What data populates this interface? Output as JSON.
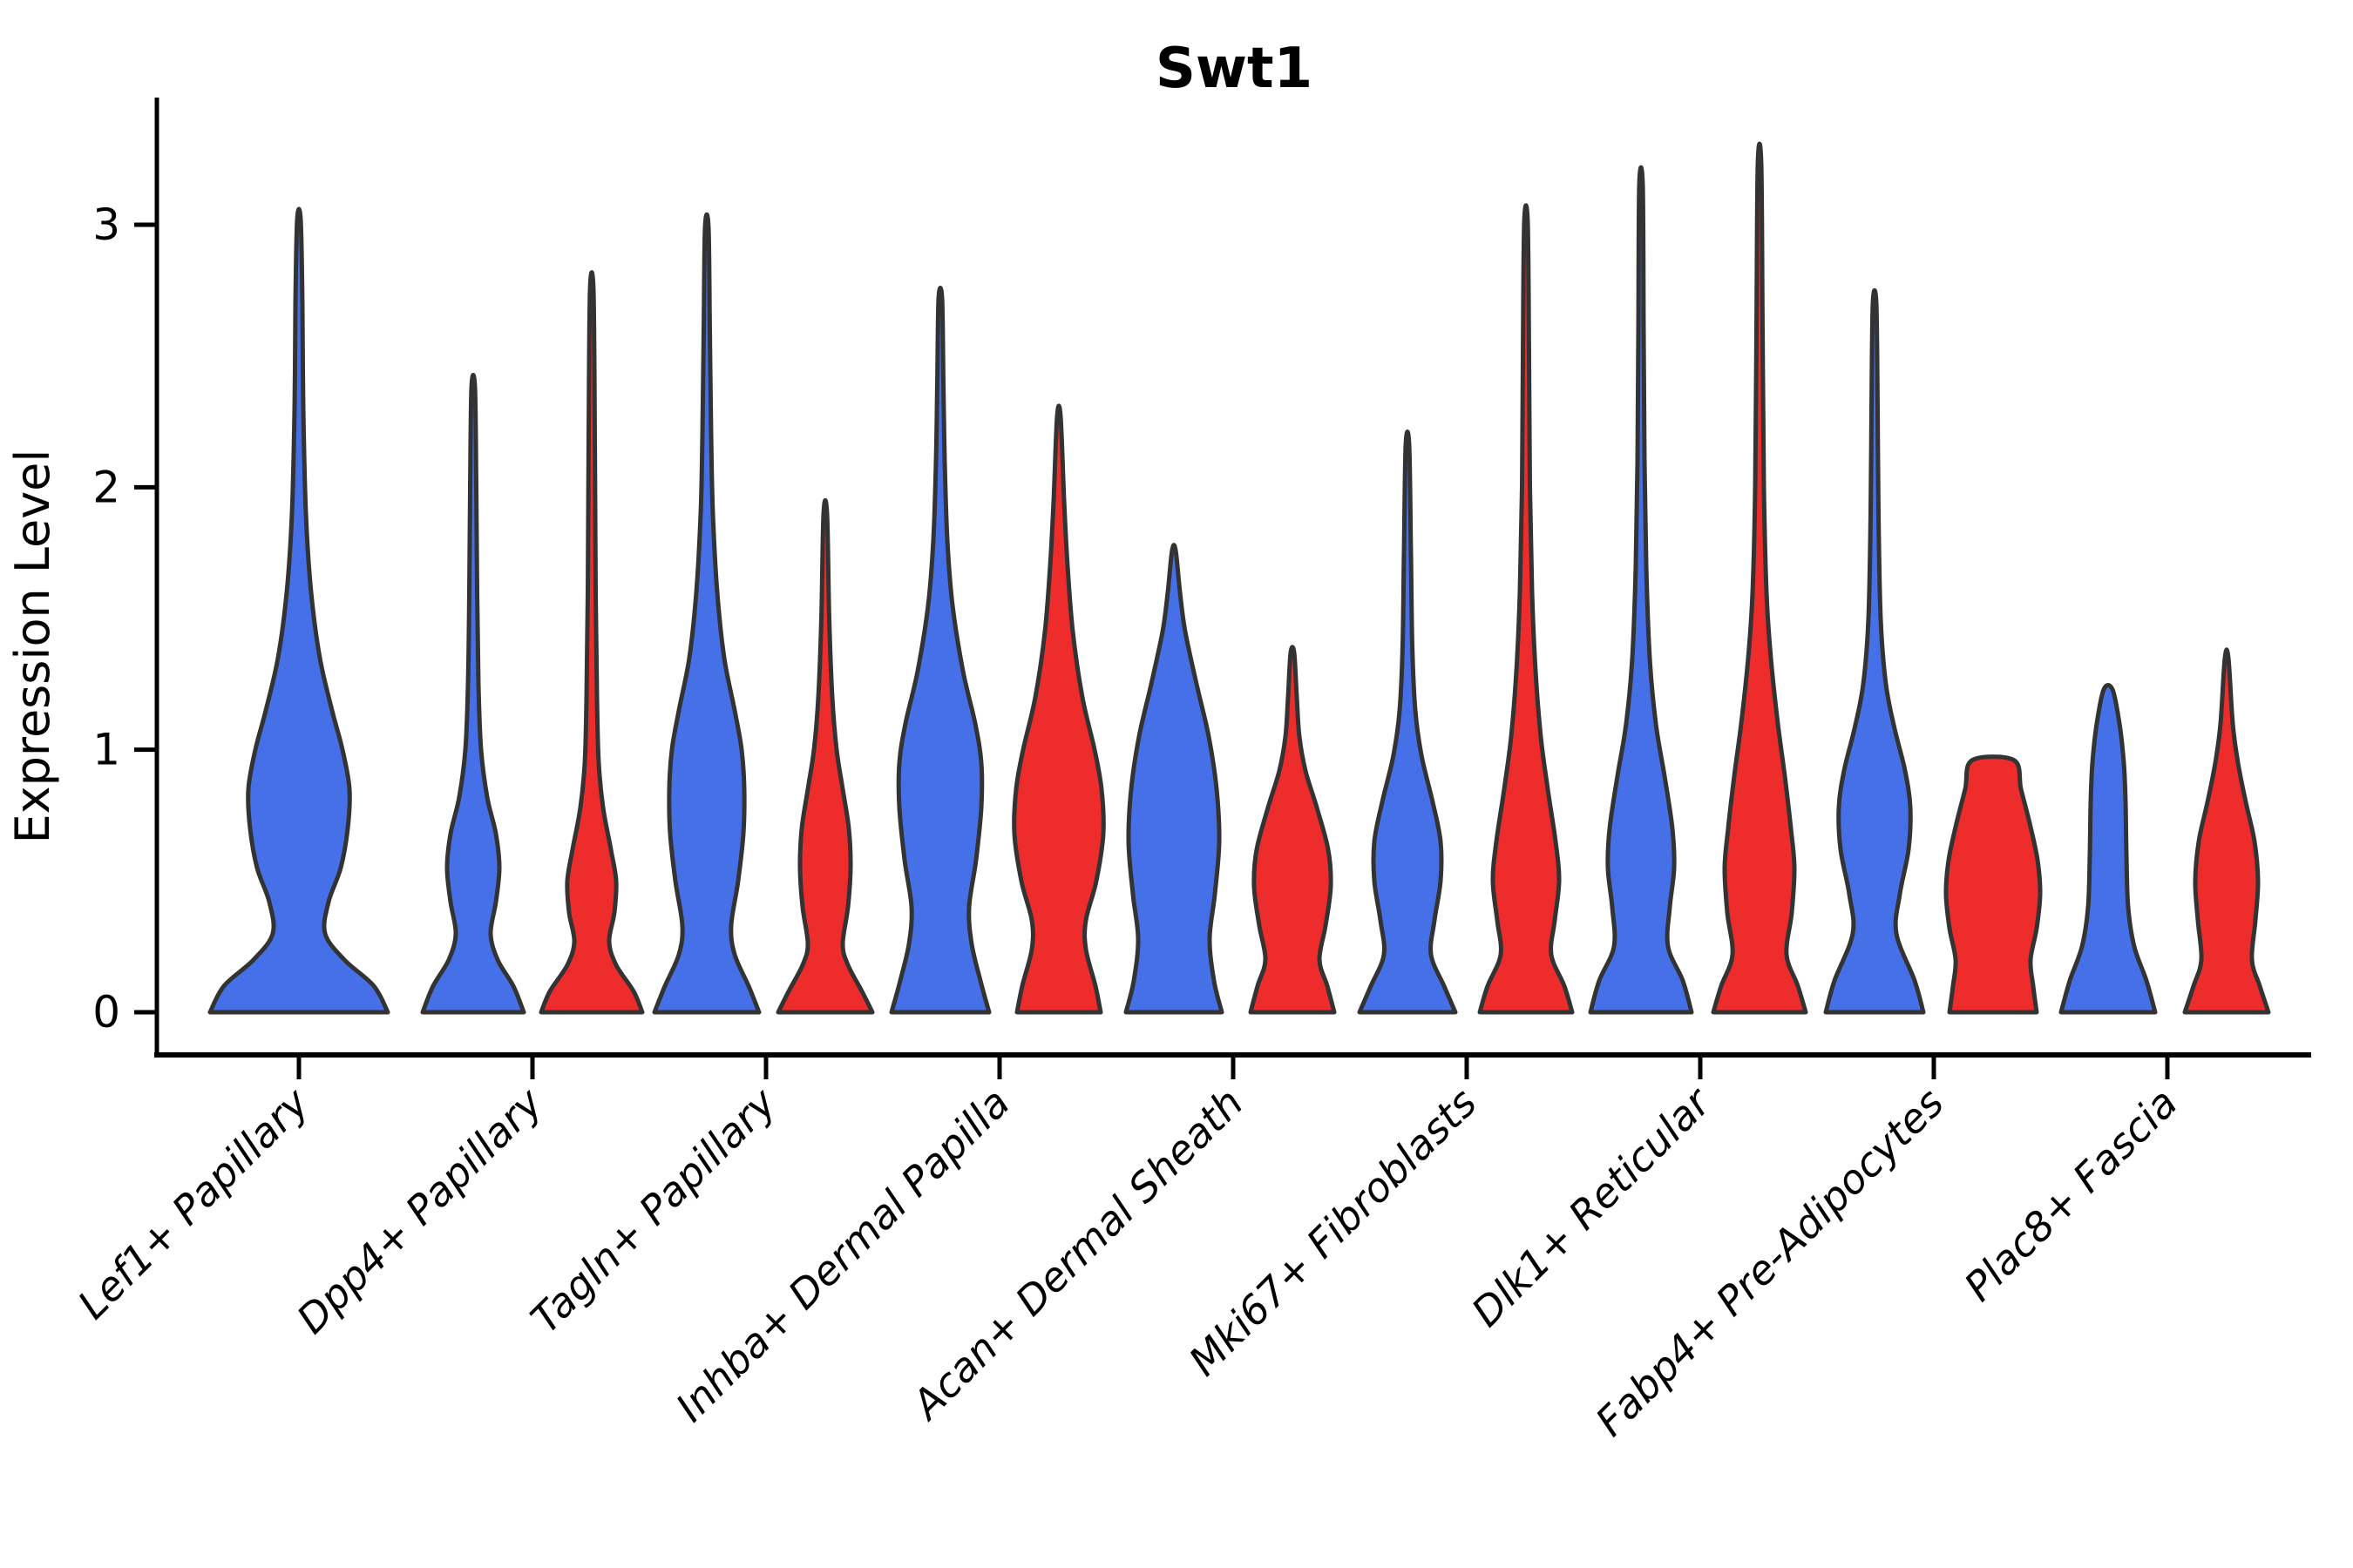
{
  "colors": {
    "blue_fill": "#4570E8",
    "red_fill": "#EE2C2C",
    "outline": "#333333",
    "axis": "#000000",
    "text": "#000000"
  },
  "chart_data": {
    "type": "violin",
    "title": "Swt1",
    "ylabel": "Expression Level",
    "xlabel": "",
    "y_ticks": [
      0,
      1,
      2,
      3
    ],
    "ylim": [
      0,
      3.35
    ],
    "grid": false,
    "legend": "none",
    "split_violins": true,
    "categories": [
      "Lef1+ Papillary",
      "Dpp4+ Papillary",
      "Tagln+ Papillary",
      "Inhba+ Dermal Papilla",
      "Acan+ Dermal Sheath",
      "Mki67+ Fibroblasts",
      "Dlk1+ Reticular",
      "Fabp4+ Pre-Adipocytes",
      "Plac8+ Fascia"
    ],
    "series": [
      {
        "name": "blue",
        "color_key": "blue_fill",
        "violins": [
          {
            "single": true,
            "max": 3.02,
            "profile": [
              [
                0,
                102
              ],
              [
                0.1,
                86
              ],
              [
                0.2,
                52
              ],
              [
                0.3,
                30
              ],
              [
                0.42,
                34
              ],
              [
                0.55,
                48
              ],
              [
                0.7,
                56
              ],
              [
                0.85,
                58
              ],
              [
                1.0,
                50
              ],
              [
                1.15,
                38
              ],
              [
                1.35,
                24
              ],
              [
                1.6,
                14
              ],
              [
                1.9,
                8
              ],
              [
                2.3,
                5
              ],
              [
                2.7,
                4
              ],
              [
                3.02,
                2
              ]
            ]
          },
          {
            "single": false,
            "max": 2.38,
            "profile": [
              [
                0,
                58
              ],
              [
                0.1,
                46
              ],
              [
                0.2,
                28
              ],
              [
                0.3,
                20
              ],
              [
                0.42,
                26
              ],
              [
                0.55,
                30
              ],
              [
                0.68,
                26
              ],
              [
                0.82,
                16
              ],
              [
                1.0,
                9
              ],
              [
                1.25,
                6
              ],
              [
                1.6,
                4.5
              ],
              [
                2.0,
                3.5
              ],
              [
                2.38,
                2
              ]
            ]
          },
          {
            "single": false,
            "max": 2.99,
            "profile": [
              [
                0,
                60
              ],
              [
                0.1,
                48
              ],
              [
                0.22,
                32
              ],
              [
                0.33,
                28
              ],
              [
                0.5,
                36
              ],
              [
                0.68,
                42
              ],
              [
                0.85,
                43
              ],
              [
                1.0,
                40
              ],
              [
                1.15,
                32
              ],
              [
                1.35,
                20
              ],
              [
                1.6,
                12
              ],
              [
                1.9,
                7
              ],
              [
                2.2,
                5
              ],
              [
                2.6,
                3.5
              ],
              [
                2.99,
                2
              ]
            ]
          },
          {
            "single": false,
            "max": 2.72,
            "profile": [
              [
                0,
                56
              ],
              [
                0.12,
                46
              ],
              [
                0.26,
                36
              ],
              [
                0.4,
                33
              ],
              [
                0.58,
                41
              ],
              [
                0.78,
                47
              ],
              [
                0.95,
                47
              ],
              [
                1.1,
                40
              ],
              [
                1.3,
                26
              ],
              [
                1.55,
                14
              ],
              [
                1.8,
                8
              ],
              [
                2.1,
                5
              ],
              [
                2.4,
                3.5
              ],
              [
                2.72,
                2
              ]
            ]
          },
          {
            "single": false,
            "max": 1.76,
            "profile": [
              [
                0,
                55
              ],
              [
                0.12,
                46
              ],
              [
                0.28,
                41
              ],
              [
                0.45,
                47
              ],
              [
                0.65,
                52
              ],
              [
                0.85,
                49
              ],
              [
                1.05,
                40
              ],
              [
                1.25,
                26
              ],
              [
                1.45,
                13
              ],
              [
                1.6,
                7
              ],
              [
                1.76,
                2
              ]
            ]
          },
          {
            "single": false,
            "max": 2.16,
            "profile": [
              [
                0,
                55
              ],
              [
                0.1,
                42
              ],
              [
                0.22,
                27
              ],
              [
                0.35,
                31
              ],
              [
                0.5,
                38
              ],
              [
                0.65,
                38
              ],
              [
                0.8,
                29
              ],
              [
                0.98,
                16
              ],
              [
                1.15,
                9
              ],
              [
                1.4,
                5.5
              ],
              [
                1.75,
                4
              ],
              [
                2.16,
                2
              ]
            ]
          },
          {
            "single": false,
            "max": 3.15,
            "profile": [
              [
                0,
                58
              ],
              [
                0.12,
                48
              ],
              [
                0.25,
                31
              ],
              [
                0.4,
                33
              ],
              [
                0.55,
                38
              ],
              [
                0.7,
                36
              ],
              [
                0.9,
                27
              ],
              [
                1.1,
                17
              ],
              [
                1.35,
                10
              ],
              [
                1.7,
                6
              ],
              [
                2.1,
                4
              ],
              [
                2.6,
                3
              ],
              [
                3.15,
                2
              ]
            ]
          },
          {
            "single": false,
            "max": 2.7,
            "profile": [
              [
                0,
                56
              ],
              [
                0.12,
                46
              ],
              [
                0.3,
                25
              ],
              [
                0.45,
                29
              ],
              [
                0.62,
                39
              ],
              [
                0.78,
                41
              ],
              [
                0.92,
                35
              ],
              [
                1.08,
                23
              ],
              [
                1.25,
                13
              ],
              [
                1.5,
                7
              ],
              [
                1.9,
                4.5
              ],
              [
                2.3,
                3.5
              ],
              [
                2.7,
                2
              ]
            ]
          },
          {
            "single": false,
            "max": 1.23,
            "profile": [
              [
                0,
                54
              ],
              [
                0.12,
                44
              ],
              [
                0.25,
                30
              ],
              [
                0.4,
                23
              ],
              [
                0.6,
                21
              ],
              [
                0.8,
                20
              ],
              [
                0.95,
                18
              ],
              [
                1.1,
                13
              ],
              [
                1.23,
                5
              ]
            ]
          }
        ]
      },
      {
        "name": "red",
        "color_key": "red_fill",
        "violins": [
          null,
          {
            "single": false,
            "max": 2.75,
            "profile": [
              [
                0,
                58
              ],
              [
                0.08,
                48
              ],
              [
                0.18,
                28
              ],
              [
                0.27,
                20
              ],
              [
                0.38,
                26
              ],
              [
                0.5,
                28
              ],
              [
                0.62,
                22
              ],
              [
                0.78,
                13
              ],
              [
                0.95,
                8
              ],
              [
                1.2,
                6
              ],
              [
                1.6,
                4.5
              ],
              [
                2.2,
                3.5
              ],
              [
                2.75,
                2
              ]
            ]
          },
          {
            "single": false,
            "max": 1.9,
            "profile": [
              [
                0,
                54
              ],
              [
                0.08,
                42
              ],
              [
                0.18,
                26
              ],
              [
                0.26,
                20
              ],
              [
                0.4,
                26
              ],
              [
                0.55,
                29
              ],
              [
                0.7,
                27
              ],
              [
                0.85,
                20
              ],
              [
                1.0,
                13
              ],
              [
                1.2,
                8
              ],
              [
                1.5,
                4.5
              ],
              [
                1.9,
                2
              ]
            ]
          },
          {
            "single": false,
            "max": 2.27,
            "profile": [
              [
                0,
                48
              ],
              [
                0.1,
                42
              ],
              [
                0.24,
                31
              ],
              [
                0.35,
                31
              ],
              [
                0.5,
                43
              ],
              [
                0.68,
                51
              ],
              [
                0.85,
                49
              ],
              [
                1.0,
                41
              ],
              [
                1.2,
                27
              ],
              [
                1.45,
                16
              ],
              [
                1.7,
                10
              ],
              [
                1.95,
                6
              ],
              [
                2.27,
                2
              ]
            ]
          },
          {
            "single": false,
            "max": 1.37,
            "profile": [
              [
                0,
                48
              ],
              [
                0.1,
                40
              ],
              [
                0.2,
                31
              ],
              [
                0.33,
                38
              ],
              [
                0.48,
                44
              ],
              [
                0.62,
                41
              ],
              [
                0.78,
                28
              ],
              [
                0.92,
                15
              ],
              [
                1.05,
                8
              ],
              [
                1.2,
                5
              ],
              [
                1.37,
                2
              ]
            ]
          },
          {
            "single": false,
            "max": 3.01,
            "profile": [
              [
                0,
                53
              ],
              [
                0.1,
                44
              ],
              [
                0.22,
                29
              ],
              [
                0.35,
                33
              ],
              [
                0.5,
                38
              ],
              [
                0.65,
                34
              ],
              [
                0.85,
                25
              ],
              [
                1.05,
                17
              ],
              [
                1.3,
                11
              ],
              [
                1.6,
                7
              ],
              [
                2.0,
                4.5
              ],
              [
                2.5,
                3.5
              ],
              [
                3.01,
                2
              ]
            ]
          },
          {
            "single": false,
            "max": 3.23,
            "profile": [
              [
                0,
                53
              ],
              [
                0.1,
                44
              ],
              [
                0.22,
                31
              ],
              [
                0.38,
                37
              ],
              [
                0.55,
                40
              ],
              [
                0.7,
                36
              ],
              [
                0.9,
                29
              ],
              [
                1.1,
                21
              ],
              [
                1.35,
                13
              ],
              [
                1.6,
                8
              ],
              [
                2.0,
                5
              ],
              [
                2.6,
                3.5
              ],
              [
                3.23,
                2
              ]
            ]
          },
          {
            "single": false,
            "max": 0.96,
            "flat_top": true,
            "profile": [
              [
                0,
                50
              ],
              [
                0.1,
                46
              ],
              [
                0.2,
                43
              ],
              [
                0.32,
                50
              ],
              [
                0.45,
                54
              ],
              [
                0.58,
                51
              ],
              [
                0.72,
                42
              ],
              [
                0.85,
                32
              ],
              [
                0.96,
                24
              ]
            ]
          },
          {
            "single": false,
            "max": 1.35,
            "profile": [
              [
                0,
                48
              ],
              [
                0.1,
                38
              ],
              [
                0.2,
                29
              ],
              [
                0.35,
                33
              ],
              [
                0.5,
                36
              ],
              [
                0.65,
                32
              ],
              [
                0.8,
                22
              ],
              [
                0.95,
                13
              ],
              [
                1.1,
                7
              ],
              [
                1.35,
                2
              ]
            ]
          }
        ]
      }
    ]
  }
}
